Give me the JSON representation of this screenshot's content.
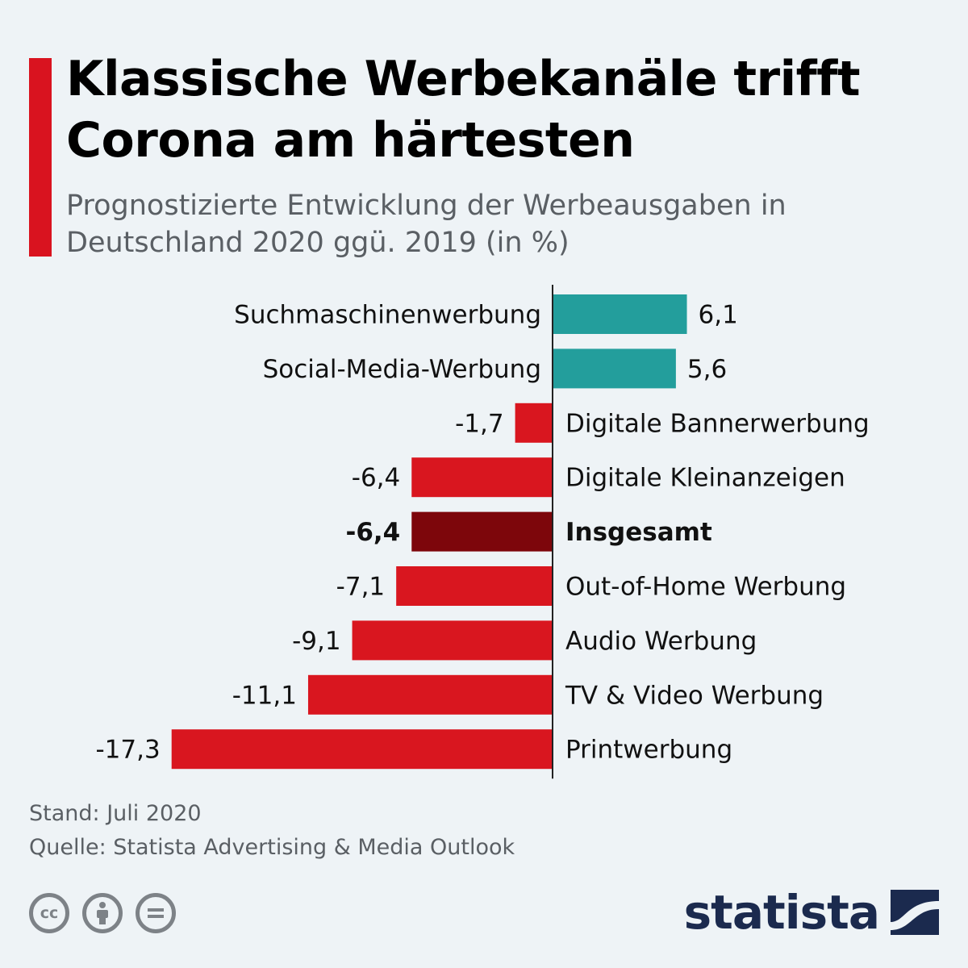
{
  "header": {
    "title": "Klassische Werbekanäle trifft Corona am härtesten",
    "subtitle": "Prognostizierte Entwicklung der Werbeausgaben in Deutschland 2020 ggü. 2019 (in %)"
  },
  "chart_data": {
    "type": "bar",
    "orientation": "horizontal",
    "title": "Klassische Werbekanäle trifft Corona am härtesten",
    "subtitle": "Prognostizierte Entwicklung der Werbeausgaben in Deutschland 2020 ggü. 2019 (in %)",
    "categories": [
      "Suchmaschinenwerbung",
      "Social-Media-Werbung",
      "Digitale Bannerwerbung",
      "Digitale Kleinanzeigen",
      "Insgesamt",
      "Out-of-Home Werbung",
      "Audio Werbung",
      "TV & Video Werbung",
      "Printwerbung"
    ],
    "values": [
      6.1,
      5.6,
      -1.7,
      -6.4,
      -6.4,
      -7.1,
      -9.1,
      -11.1,
      -17.3
    ],
    "value_labels": [
      "6,1",
      "5,6",
      "-1,7",
      "-6,4",
      "-6,4",
      "-7,1",
      "-9,1",
      "-11,1",
      "-17,3"
    ],
    "highlight": "Insgesamt",
    "colors": {
      "positive": "#239e9c",
      "negative": "#d9161f",
      "highlight": "#7d060b"
    },
    "grid": false,
    "legend": "none"
  },
  "footer": {
    "stand": "Stand: Juli 2020",
    "source": "Quelle: Statista Advertising & Media Outlook"
  },
  "license_icons": [
    {
      "name": "cc-icon",
      "text": "cc"
    },
    {
      "name": "attribution-icon",
      "text": ""
    },
    {
      "name": "no-derivatives-icon",
      "text": ""
    }
  ],
  "brand": {
    "name": "statista",
    "icon": "statista-logo-icon",
    "color": "#1b2a4e"
  }
}
